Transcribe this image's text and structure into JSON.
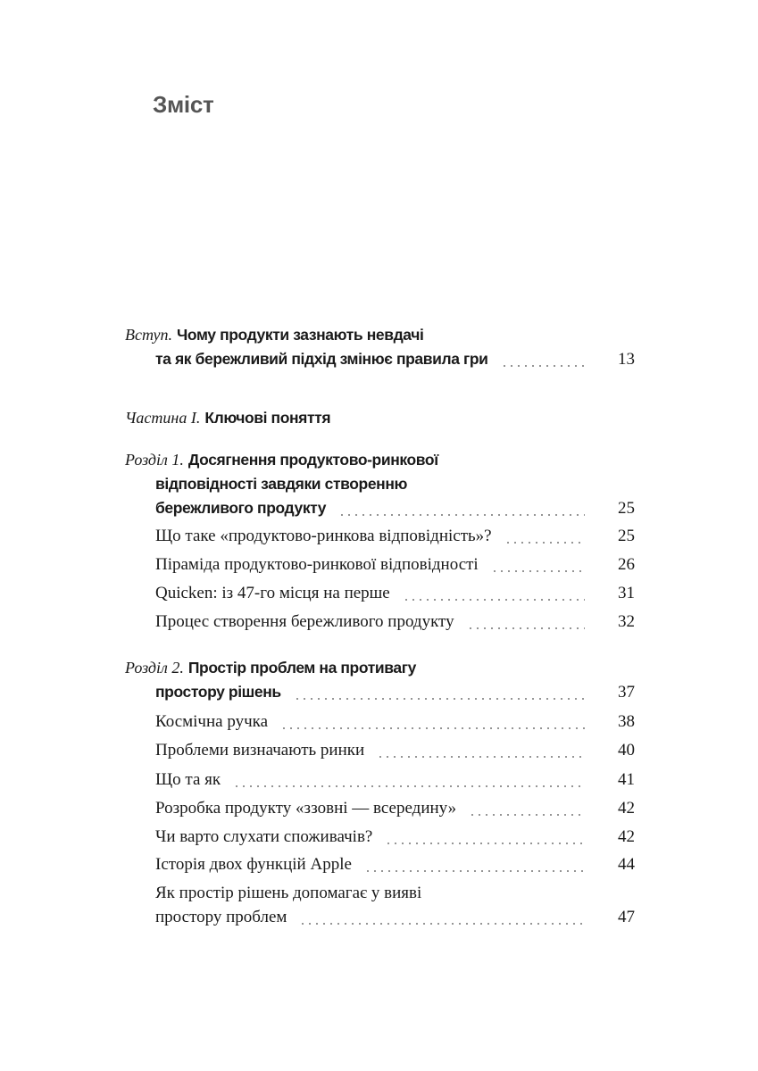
{
  "title": "Зміст",
  "intro": {
    "label": "Вступ.",
    "line1": "Чому продукти зазнають невдачі",
    "line2": "та як бережливий підхід змінює правила гри",
    "page": "13"
  },
  "part1": {
    "label": "Частина I.",
    "title": "Ключові поняття"
  },
  "chapter1": {
    "label": "Розділ 1.",
    "line1": "Досягнення продуктово-ринкової",
    "line2": "відповідності завдяки створенню",
    "line3": "бережливого продукту",
    "page": "25",
    "sections": [
      {
        "title": "Що таке «продуктово-ринкова відповідність»?",
        "page": "25"
      },
      {
        "title": "Піраміда продуктово-ринкової відповідності",
        "page": "26"
      },
      {
        "title": "Quicken: із 47-го місця на перше",
        "page": "31"
      },
      {
        "title": "Процес створення бережливого продукту",
        "page": "32"
      }
    ]
  },
  "chapter2": {
    "label": "Розділ 2.",
    "line1": "Простір проблем на противагу",
    "line2": "простору рішень",
    "page": "37",
    "sections": [
      {
        "title": "Космічна ручка",
        "page": "38"
      },
      {
        "title": "Проблеми визначають ринки",
        "page": "40"
      },
      {
        "title": "Що та як",
        "page": "41"
      },
      {
        "title": "Розробка продукту «ззовні — всередину»",
        "page": "42"
      },
      {
        "title": "Чи варто слухати споживачів?",
        "page": "42"
      },
      {
        "title": "Історія двох функцій Apple",
        "page": "44"
      }
    ],
    "last_section": {
      "line1": "Як простір рішень допомагає у вияві",
      "line2": "простору проблем",
      "page": "47"
    }
  }
}
